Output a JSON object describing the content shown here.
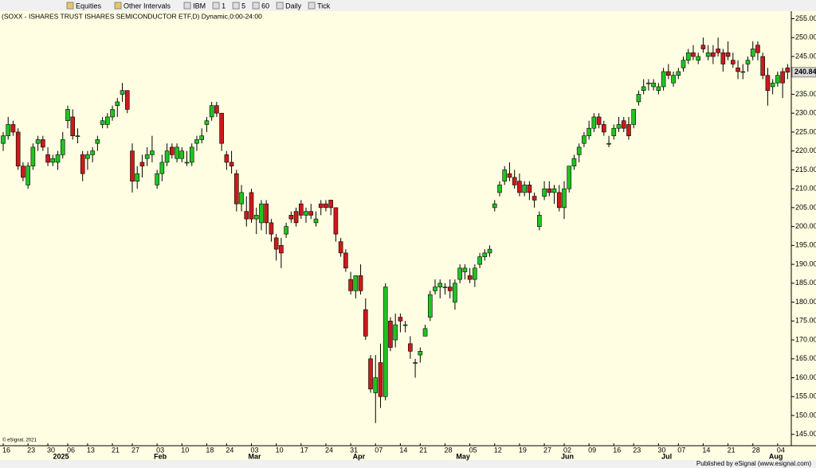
{
  "toolbar": {
    "items": [
      "Equities",
      "Other Intervals",
      "IBM",
      "1",
      "5",
      "60",
      "Daily",
      "Tick"
    ]
  },
  "footer": {
    "copyright": "© eSignal, 2021",
    "publisher": "Published by eSignal (www.esignal.com)"
  },
  "chart_data": {
    "type": "candlestick",
    "title": "(SOXX - ISHARES TRUST ISHARES SEMICONDUCTOR ETF,D) Dynamic,0:00-24:00",
    "up_color": "#22c322",
    "down_color": "#cc1a1a",
    "background": "#fffee2",
    "ylim": [
      142,
      257
    ],
    "yticks": [
      {
        "value": 145,
        "label": "145.00"
      },
      {
        "value": 150,
        "label": "150.00"
      },
      {
        "value": 155,
        "label": "155.00"
      },
      {
        "value": 160,
        "label": "160.00"
      },
      {
        "value": 165,
        "label": "165.00"
      },
      {
        "value": 170,
        "label": "170.00"
      },
      {
        "value": 175,
        "label": "175.00"
      },
      {
        "value": 180,
        "label": "180.00"
      },
      {
        "value": 185,
        "label": "185.00"
      },
      {
        "value": 190,
        "label": "190.00"
      },
      {
        "value": 195,
        "label": "195.00"
      },
      {
        "value": 200,
        "label": "200.00"
      },
      {
        "value": 205,
        "label": "205.00"
      },
      {
        "value": 210,
        "label": "210.00"
      },
      {
        "value": 215,
        "label": "215.00"
      },
      {
        "value": 220,
        "label": "220.00"
      },
      {
        "value": 225,
        "label": "225.00"
      },
      {
        "value": 230,
        "label": "230.00"
      },
      {
        "value": 235,
        "label": "235.00"
      },
      {
        "value": 240,
        "label": "240.00"
      },
      {
        "value": 245,
        "label": "245.00"
      },
      {
        "value": 250,
        "label": "250.00"
      },
      {
        "value": 255,
        "label": "255.00"
      }
    ],
    "last_price": 240.84,
    "xticks": [
      {
        "value": 0,
        "label": "16"
      },
      {
        "value": 5,
        "label": "23"
      },
      {
        "value": 9,
        "label": "30"
      },
      {
        "value": 13,
        "label": "06"
      },
      {
        "value": 17,
        "label": "13"
      },
      {
        "value": 22,
        "label": "21"
      },
      {
        "value": 26,
        "label": "27"
      },
      {
        "value": 31,
        "label": "03"
      },
      {
        "value": 36,
        "label": "10"
      },
      {
        "value": 41,
        "label": "18"
      },
      {
        "value": 45,
        "label": "24"
      },
      {
        "value": 50,
        "label": "03"
      },
      {
        "value": 55,
        "label": "10"
      },
      {
        "value": 60,
        "label": "17"
      },
      {
        "value": 65,
        "label": "24"
      },
      {
        "value": 70,
        "label": "31"
      },
      {
        "value": 75,
        "label": "07"
      },
      {
        "value": 80,
        "label": "14"
      },
      {
        "value": 84,
        "label": "21"
      },
      {
        "value": 89,
        "label": "28"
      },
      {
        "value": 94,
        "label": "05"
      },
      {
        "value": 99,
        "label": "12"
      },
      {
        "value": 104,
        "label": "19"
      },
      {
        "value": 109,
        "label": "27"
      },
      {
        "value": 113,
        "label": "02"
      },
      {
        "value": 118,
        "label": "09"
      },
      {
        "value": 123,
        "label": "16"
      },
      {
        "value": 127,
        "label": "23"
      },
      {
        "value": 132,
        "label": "30"
      },
      {
        "value": 136,
        "label": "07"
      },
      {
        "value": 141,
        "label": "14"
      },
      {
        "value": 146,
        "label": "21"
      },
      {
        "value": 151,
        "label": "28"
      },
      {
        "value": 156,
        "label": "04"
      }
    ],
    "months": [
      {
        "value": 11,
        "label": "2025"
      },
      {
        "value": 31,
        "label": "Feb"
      },
      {
        "value": 50,
        "label": "Mar"
      },
      {
        "value": 71,
        "label": "Apr"
      },
      {
        "value": 92,
        "label": "May"
      },
      {
        "value": 113,
        "label": "Jun"
      },
      {
        "value": 133,
        "label": "Jul"
      },
      {
        "value": 155,
        "label": "Aug"
      }
    ],
    "ohlc": [
      [
        222,
        225,
        220,
        224
      ],
      [
        224,
        229,
        223,
        227
      ],
      [
        227,
        228,
        224,
        225
      ],
      [
        225,
        226,
        215,
        216
      ],
      [
        216,
        217,
        212,
        213
      ],
      [
        211,
        217,
        210,
        216
      ],
      [
        216,
        222,
        215,
        221
      ],
      [
        222,
        224,
        220,
        223
      ],
      [
        223,
        224,
        220,
        221
      ],
      [
        219,
        221,
        216,
        217
      ],
      [
        217,
        219,
        216,
        218
      ],
      [
        217,
        220,
        215,
        219
      ],
      [
        219,
        225,
        218,
        223
      ],
      [
        228,
        232,
        226,
        231
      ],
      [
        229,
        231,
        223,
        224
      ],
      [
        224,
        226,
        222,
        224
      ],
      [
        219,
        220,
        212,
        214
      ],
      [
        218,
        220,
        215,
        219
      ],
      [
        219,
        221,
        217,
        220
      ],
      [
        222,
        224,
        220,
        223
      ],
      [
        227,
        229,
        226,
        228
      ],
      [
        227,
        230,
        226,
        229
      ],
      [
        229,
        232,
        228,
        231
      ],
      [
        232,
        234,
        229,
        233
      ],
      [
        235,
        238,
        233,
        236
      ],
      [
        236,
        236,
        230,
        231
      ],
      [
        220,
        222,
        209,
        212
      ],
      [
        212,
        216,
        210,
        214
      ],
      [
        217,
        219,
        213,
        216
      ],
      [
        218,
        221,
        216,
        219
      ],
      [
        219,
        224,
        217,
        220
      ],
      [
        211,
        215,
        210,
        214
      ],
      [
        214,
        219,
        212,
        217
      ],
      [
        217,
        222,
        216,
        220
      ],
      [
        221,
        222,
        218,
        219
      ],
      [
        218,
        222,
        217,
        221
      ],
      [
        218,
        221,
        217,
        220
      ],
      [
        217,
        220,
        216,
        217
      ],
      [
        217,
        222,
        216,
        221
      ],
      [
        222,
        224,
        220,
        223
      ],
      [
        223,
        226,
        222,
        224
      ],
      [
        227,
        229,
        225,
        228
      ],
      [
        229,
        233,
        228,
        232
      ],
      [
        232,
        233,
        229,
        230
      ],
      [
        230,
        230,
        220,
        222
      ],
      [
        219,
        220,
        215,
        217
      ],
      [
        217,
        220,
        214,
        216
      ],
      [
        214,
        215,
        204,
        206
      ],
      [
        206,
        211,
        204,
        209
      ],
      [
        204,
        208,
        200,
        202
      ],
      [
        209,
        210,
        201,
        202
      ],
      [
        202,
        205,
        198,
        203
      ],
      [
        201,
        207,
        199,
        206
      ],
      [
        206,
        207,
        198,
        201
      ],
      [
        201,
        202,
        196,
        198
      ],
      [
        197,
        198,
        191,
        194
      ],
      [
        195,
        197,
        189,
        193
      ],
      [
        198,
        201,
        197,
        200
      ],
      [
        203,
        204,
        201,
        202
      ],
      [
        204,
        205,
        200,
        201
      ],
      [
        206,
        207,
        202,
        203
      ],
      [
        203,
        205,
        201,
        204
      ],
      [
        204,
        206,
        202,
        203
      ],
      [
        201,
        204,
        200,
        202
      ],
      [
        206,
        207,
        203,
        205
      ],
      [
        206,
        207,
        204,
        205
      ],
      [
        207,
        207,
        203,
        205
      ],
      [
        205,
        205,
        196,
        198
      ],
      [
        196,
        197,
        192,
        193
      ],
      [
        193,
        194,
        188,
        189
      ],
      [
        186,
        188,
        182,
        183
      ],
      [
        183,
        187,
        181,
        187
      ],
      [
        187,
        190,
        182,
        183
      ],
      [
        178,
        181,
        170,
        171
      ],
      [
        165,
        166,
        156,
        157
      ],
      [
        156,
        166,
        148,
        160
      ],
      [
        164,
        169,
        152,
        155
      ],
      [
        155,
        185,
        154,
        184
      ],
      [
        175,
        176,
        167,
        168
      ],
      [
        170,
        177,
        168,
        174
      ],
      [
        176,
        177,
        172,
        175
      ],
      [
        174,
        175,
        172,
        174
      ],
      [
        169,
        171,
        165,
        167
      ],
      [
        164,
        165,
        160,
        164
      ],
      [
        166,
        168,
        164,
        167
      ],
      [
        171,
        174,
        171,
        173
      ],
      [
        176,
        183,
        175,
        182
      ],
      [
        183,
        186,
        182,
        184
      ],
      [
        184,
        186,
        181,
        185
      ],
      [
        184,
        185,
        182,
        184
      ],
      [
        184,
        186,
        181,
        183
      ],
      [
        180,
        186,
        178,
        185
      ],
      [
        186,
        190,
        185,
        189
      ],
      [
        188,
        190,
        186,
        189
      ],
      [
        187,
        189,
        185,
        186
      ],
      [
        186,
        190,
        184,
        189
      ],
      [
        190,
        193,
        189,
        192
      ],
      [
        192,
        194,
        191,
        193
      ],
      [
        193,
        195,
        192,
        194
      ],
      [
        205,
        207,
        204,
        206
      ],
      [
        209,
        212,
        208,
        211
      ],
      [
        212,
        216,
        211,
        215
      ],
      [
        214,
        217,
        212,
        213
      ],
      [
        213,
        215,
        210,
        211
      ],
      [
        212,
        214,
        208,
        209
      ],
      [
        209,
        212,
        208,
        211
      ],
      [
        211,
        212,
        207,
        209
      ],
      [
        208,
        209,
        205,
        207
      ],
      [
        200,
        204,
        199,
        203
      ],
      [
        208,
        212,
        207,
        210
      ],
      [
        210,
        212,
        208,
        209
      ],
      [
        209,
        211,
        206,
        210
      ],
      [
        209,
        211,
        204,
        205
      ],
      [
        205,
        212,
        202,
        210
      ],
      [
        210,
        216,
        209,
        216
      ],
      [
        216,
        219,
        215,
        218
      ],
      [
        219,
        222,
        217,
        221
      ],
      [
        222,
        225,
        221,
        224
      ],
      [
        224,
        228,
        223,
        226
      ],
      [
        226,
        230,
        225,
        229
      ],
      [
        229,
        230,
        226,
        227
      ],
      [
        227,
        228,
        224,
        225
      ],
      [
        222,
        224,
        221,
        222
      ],
      [
        224,
        227,
        223,
        226
      ],
      [
        226,
        229,
        225,
        227
      ],
      [
        228,
        229,
        225,
        226
      ],
      [
        227,
        229,
        223,
        224
      ],
      [
        227,
        231,
        226,
        231
      ],
      [
        233,
        236,
        232,
        235
      ],
      [
        236,
        239,
        235,
        237
      ],
      [
        238,
        239,
        236,
        238
      ],
      [
        237,
        239,
        236,
        238
      ],
      [
        236,
        238,
        235,
        237
      ],
      [
        237,
        242,
        236,
        241
      ],
      [
        241,
        243,
        239,
        240
      ],
      [
        238,
        241,
        237,
        240
      ],
      [
        240,
        242,
        239,
        241
      ],
      [
        242,
        245,
        241,
        244
      ],
      [
        244,
        247,
        243,
        246
      ],
      [
        246,
        248,
        244,
        245
      ],
      [
        244,
        246,
        243,
        245
      ],
      [
        248,
        250,
        246,
        247
      ],
      [
        245,
        248,
        244,
        246
      ],
      [
        246,
        248,
        243,
        245
      ],
      [
        247,
        250,
        245,
        246
      ],
      [
        246,
        247,
        241,
        243
      ],
      [
        246,
        249,
        244,
        245
      ],
      [
        244,
        246,
        242,
        243
      ],
      [
        242,
        244,
        239,
        241
      ],
      [
        241,
        243,
        239,
        241
      ],
      [
        243,
        245,
        241,
        244
      ],
      [
        245,
        249,
        244,
        247
      ],
      [
        248,
        249,
        244,
        246
      ],
      [
        245,
        246,
        239,
        240
      ],
      [
        240,
        242,
        232,
        236
      ],
      [
        237,
        239,
        235,
        238
      ],
      [
        238,
        241,
        237,
        240
      ],
      [
        241,
        242,
        234,
        238
      ],
      [
        242,
        243,
        239,
        240.84
      ]
    ]
  }
}
